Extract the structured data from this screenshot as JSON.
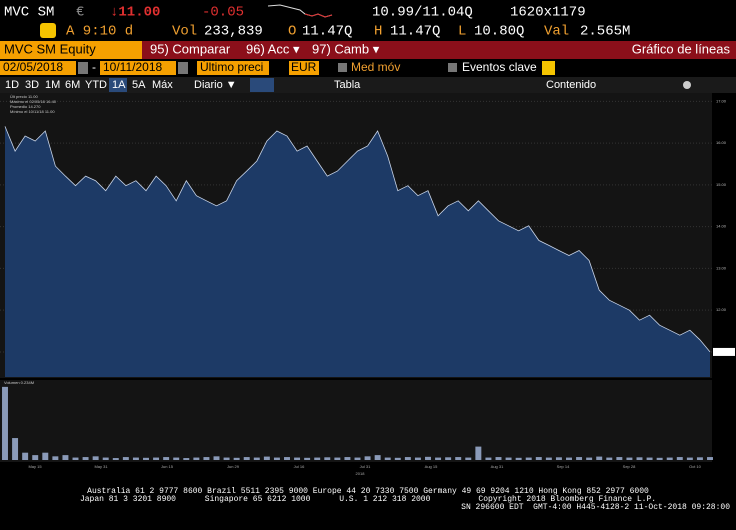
{
  "header": {
    "ticker": "MVC SM",
    "currency": "€",
    "last": "↓11.00",
    "change": "-0.05",
    "bidask": "10.99/11.04Q",
    "size": "1620x1179",
    "time": "A 9:10 d",
    "vol_label": "Vol",
    "vol": "233,839",
    "open_label": "O",
    "open": "11.47Q",
    "high_label": "H",
    "high": "11.47Q",
    "low_label": "L",
    "low": "10.80Q",
    "val_label": "Val",
    "val": "2.565M"
  },
  "toolbar": {
    "security": "MVC SM Equity",
    "compare": "95) Comparar",
    "actions": "96) Acc ▾",
    "change": "97) Camb ▾",
    "title": "Gráfico de líneas",
    "start": "02/05/2018",
    "dash": "-",
    "end": "10/11/2018",
    "field": "Último preci",
    "ccy": "EUR",
    "mavg": "Med móv",
    "events": "Eventos clave",
    "periods": [
      "1D",
      "3D",
      "1M",
      "6M",
      "YTD",
      "1A",
      "5A",
      "Máx"
    ],
    "freq": "Diario ▼",
    "table": "Tabla",
    "content": "Contenido"
  },
  "chart_data": {
    "type": "area",
    "color": "#1d3a66",
    "legend": [
      "Últ precio 11.00",
      "Máximo el 02/05/18 16.40",
      "Promedio 14.270",
      "Mínimo el 10/11/18 11.00"
    ],
    "values": [
      16.4,
      15.81,
      16.17,
      16.05,
      16.29,
      15.45,
      15.21,
      14.98,
      15.21,
      15.1,
      14.86,
      15.21,
      14.98,
      15.1,
      14.86,
      15.21,
      14.98,
      14.62,
      15.1,
      14.74,
      14.62,
      14.5,
      14.62,
      15.1,
      15.33,
      15.57,
      16.05,
      16.29,
      16.17,
      15.81,
      15.93,
      15.57,
      15.21,
      15.33,
      15.57,
      15.81,
      15.93,
      16.29,
      15.69,
      14.86,
      14.98,
      14.74,
      14.86,
      14.26,
      14.5,
      14.62,
      14.38,
      14.62,
      14.38,
      14.14,
      14.02,
      13.9,
      14.02,
      13.67,
      13.55,
      13.43,
      13.31,
      13.43,
      13.19,
      12.48,
      12.24,
      12.12,
      12.0,
      11.76,
      11.88,
      11.64,
      11.52,
      11.4,
      11.52,
      11.29,
      11.0
    ],
    "ylim": [
      10.4,
      17.2
    ],
    "yticks": [
      {
        "value": 11,
        "label": "11.00"
      },
      {
        "value": 12,
        "label": "12.00"
      },
      {
        "value": 13,
        "label": "13.00"
      },
      {
        "value": 14,
        "label": "14.00"
      },
      {
        "value": 15,
        "label": "15.00"
      },
      {
        "value": 16,
        "label": "16.00"
      },
      {
        "value": 17,
        "label": "17.00"
      }
    ],
    "volume_label": "Volumen 0.234M",
    "volume": [
      3.0,
      0.9,
      0.3,
      0.2,
      0.3,
      0.15,
      0.2,
      0.1,
      0.12,
      0.15,
      0.1,
      0.08,
      0.12,
      0.1,
      0.09,
      0.1,
      0.12,
      0.1,
      0.08,
      0.1,
      0.12,
      0.15,
      0.1,
      0.09,
      0.12,
      0.1,
      0.14,
      0.1,
      0.12,
      0.1,
      0.09,
      0.1,
      0.11,
      0.1,
      0.12,
      0.1,
      0.15,
      0.2,
      0.1,
      0.09,
      0.12,
      0.1,
      0.13,
      0.1,
      0.11,
      0.12,
      0.1,
      0.55,
      0.1,
      0.12,
      0.1,
      0.09,
      0.1,
      0.12,
      0.1,
      0.11,
      0.1,
      0.12,
      0.1,
      0.14,
      0.1,
      0.12,
      0.1,
      0.11,
      0.1,
      0.09,
      0.1,
      0.12,
      0.1,
      0.11,
      0.12
    ],
    "volume_ylim": [
      0,
      3.2
    ],
    "xlabels": [
      "May 15",
      "May 31",
      "Jun 15",
      "Jun 29",
      "Jul 16",
      "Jul 31",
      "Aug 15",
      "Aug 31",
      "Sep 14",
      "Sep 28",
      "Oct 10"
    ],
    "year": "2018"
  },
  "footer": {
    "lines": [
      "Australia 61 2 9777 8600 Brazil 5511 2395 9000 Europe 44 20 7330 7500 Germany 49 69 9204 1210 Hong Kong 852 2977 6000",
      "Japan 81 3 3201 8900      Singapore 65 6212 1000      U.S. 1 212 318 2000          Copyright 2018 Bloomberg Finance L.P.",
      "SN 296600 EDT  GMT-4:00 H445-4128-2 11-Oct-2018 09:28:00"
    ]
  }
}
